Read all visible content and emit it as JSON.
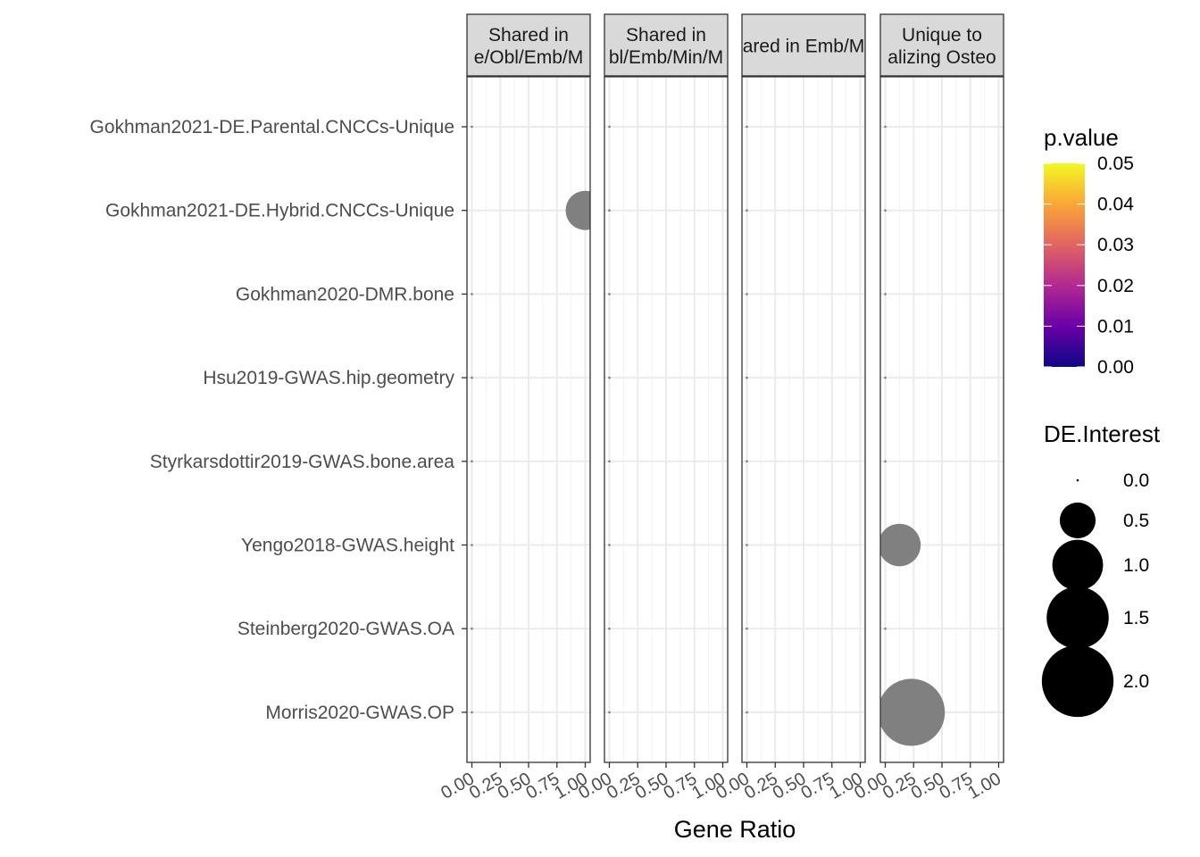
{
  "chart_data": {
    "type": "scatter",
    "xlabel": "Gene Ratio",
    "ylabel": "",
    "xlim": [
      0,
      1
    ],
    "x_ticks": [
      "0.00",
      "0.25",
      "0.50",
      "0.75",
      "1.00"
    ],
    "x_tick_values": [
      0,
      0.25,
      0.5,
      0.75,
      1
    ],
    "grid": true,
    "legend_position": "right",
    "categories": [
      "Gokhman2021-DE.Parental.CNCCs-Unique",
      "Gokhman2021-DE.Hybrid.CNCCs-Unique",
      "Gokhman2020-DMR.bone",
      "Hsu2019-GWAS.hip.geometry",
      "Styrkarsdottir2019-GWAS.bone.area",
      "Yengo2018-GWAS.height",
      "Steinberg2020-GWAS.OA",
      "Morris2020-GWAS.OP"
    ],
    "panels": [
      {
        "strip_lines": [
          "Shared in",
          "e/Obl/Emb/M"
        ],
        "points": [
          {
            "category": "Gokhman2021-DE.Parental.CNCCs-Unique",
            "x": 0,
            "size": 0
          },
          {
            "category": "Gokhman2021-DE.Hybrid.CNCCs-Unique",
            "x": 1.0,
            "size": 0.6
          },
          {
            "category": "Gokhman2020-DMR.bone",
            "x": 0,
            "size": 0
          },
          {
            "category": "Hsu2019-GWAS.hip.geometry",
            "x": 0,
            "size": 0
          },
          {
            "category": "Styrkarsdottir2019-GWAS.bone.area",
            "x": 0,
            "size": 0
          },
          {
            "category": "Yengo2018-GWAS.height",
            "x": 0,
            "size": 0
          },
          {
            "category": "Steinberg2020-GWAS.OA",
            "x": 0,
            "size": 0
          },
          {
            "category": "Morris2020-GWAS.OP",
            "x": 0,
            "size": 0
          }
        ]
      },
      {
        "strip_lines": [
          "Shared in",
          "bl/Emb/Min/M"
        ],
        "points": [
          {
            "category": "Gokhman2021-DE.Parental.CNCCs-Unique",
            "x": 0,
            "size": 0
          },
          {
            "category": "Gokhman2021-DE.Hybrid.CNCCs-Unique",
            "x": 0,
            "size": 0
          },
          {
            "category": "Gokhman2020-DMR.bone",
            "x": 0,
            "size": 0
          },
          {
            "category": "Hsu2019-GWAS.hip.geometry",
            "x": 0,
            "size": 0
          },
          {
            "category": "Styrkarsdottir2019-GWAS.bone.area",
            "x": 0,
            "size": 0
          },
          {
            "category": "Yengo2018-GWAS.height",
            "x": 0,
            "size": 0
          },
          {
            "category": "Steinberg2020-GWAS.OA",
            "x": 0,
            "size": 0
          },
          {
            "category": "Morris2020-GWAS.OP",
            "x": 0,
            "size": 0
          }
        ]
      },
      {
        "strip_lines": [
          "ared in Emb/M"
        ],
        "points": [
          {
            "category": "Gokhman2021-DE.Parental.CNCCs-Unique",
            "x": 0,
            "size": 0
          },
          {
            "category": "Gokhman2021-DE.Hybrid.CNCCs-Unique",
            "x": 0,
            "size": 0
          },
          {
            "category": "Gokhman2020-DMR.bone",
            "x": 0,
            "size": 0
          },
          {
            "category": "Hsu2019-GWAS.hip.geometry",
            "x": 0,
            "size": 0
          },
          {
            "category": "Styrkarsdottir2019-GWAS.bone.area",
            "x": 0,
            "size": 0
          },
          {
            "category": "Yengo2018-GWAS.height",
            "x": 0,
            "size": 0
          },
          {
            "category": "Steinberg2020-GWAS.OA",
            "x": 0,
            "size": 0
          },
          {
            "category": "Morris2020-GWAS.OP",
            "x": 0,
            "size": 0
          }
        ]
      },
      {
        "strip_lines": [
          "Unique to",
          "alizing Osteo"
        ],
        "points": [
          {
            "category": "Gokhman2021-DE.Parental.CNCCs-Unique",
            "x": 0,
            "size": 0
          },
          {
            "category": "Gokhman2021-DE.Hybrid.CNCCs-Unique",
            "x": 0,
            "size": 0
          },
          {
            "category": "Gokhman2020-DMR.bone",
            "x": 0,
            "size": 0
          },
          {
            "category": "Hsu2019-GWAS.hip.geometry",
            "x": 0,
            "size": 0
          },
          {
            "category": "Styrkarsdottir2019-GWAS.bone.area",
            "x": 0,
            "size": 0
          },
          {
            "category": "Yengo2018-GWAS.height",
            "x": 0.125,
            "size": 0.7
          },
          {
            "category": "Steinberg2020-GWAS.OA",
            "x": 0,
            "size": 0
          },
          {
            "category": "Morris2020-GWAS.OP",
            "x": 0.23,
            "size": 1.75
          }
        ]
      }
    ],
    "point_color": "#808080",
    "color_legend": {
      "title": "p.value",
      "ticks": [
        "0.05",
        "0.04",
        "0.03",
        "0.02",
        "0.01",
        "0.00"
      ],
      "tick_values": [
        0.05,
        0.04,
        0.03,
        0.02,
        0.01,
        0.0
      ],
      "gradient": [
        "#f0f921",
        "#fca636",
        "#e16462",
        "#b12a90",
        "#6a00a8",
        "#0d0887"
      ]
    },
    "size_legend": {
      "title": "DE.Interest",
      "labels": [
        "0.0",
        "0.5",
        "1.0",
        "1.5",
        "2.0"
      ],
      "values": [
        0,
        0.5,
        1.0,
        1.5,
        2.0
      ]
    }
  }
}
